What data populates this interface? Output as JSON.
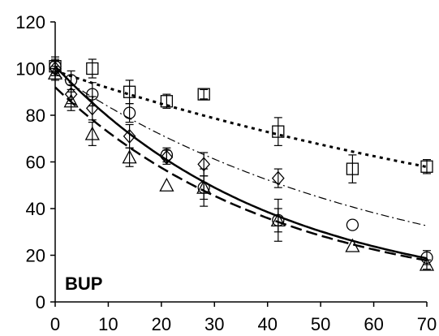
{
  "chart_data": {
    "type": "scatter",
    "panel_label": "BUP",
    "xlim": [
      0,
      70
    ],
    "ylim": [
      0,
      120
    ],
    "x_ticks": [
      0,
      10,
      20,
      30,
      40,
      50,
      60,
      70
    ],
    "y_ticks": [
      0,
      20,
      40,
      60,
      80,
      100,
      120
    ],
    "grid": false,
    "legend": "none",
    "series": [
      {
        "marker": "square",
        "points": [
          {
            "x": 0,
            "y": 101,
            "err": 4
          },
          {
            "x": 7,
            "y": 100,
            "err": 4
          },
          {
            "x": 14,
            "y": 90,
            "err": 5
          },
          {
            "x": 21,
            "y": 86,
            "err": 3
          },
          {
            "x": 28,
            "y": 89,
            "err": 2
          },
          {
            "x": 42,
            "y": 73,
            "err": 6
          },
          {
            "x": 56,
            "y": 57,
            "err": 6
          },
          {
            "x": 70,
            "y": 58,
            "err": 3
          }
        ],
        "fit": {
          "style": "dotted",
          "y0": 99,
          "k": 0.00767
        }
      },
      {
        "marker": "diamond",
        "points": [
          {
            "x": 0,
            "y": 100,
            "err": 3
          },
          {
            "x": 3,
            "y": 89,
            "err": 4
          },
          {
            "x": 7,
            "y": 83,
            "err": 5
          },
          {
            "x": 14,
            "y": 71,
            "err": 5
          },
          {
            "x": 21,
            "y": 62,
            "err": 3
          },
          {
            "x": 28,
            "y": 59,
            "err": 5
          },
          {
            "x": 42,
            "y": 53,
            "err": 4
          }
        ],
        "fit": {
          "style": "dash-dot",
          "y0": 98,
          "k": 0.0157
        }
      },
      {
        "marker": "circle",
        "points": [
          {
            "x": 0,
            "y": 101,
            "err": 3
          },
          {
            "x": 3,
            "y": 95,
            "err": 4
          },
          {
            "x": 7,
            "y": 89,
            "err": 5
          },
          {
            "x": 14,
            "y": 81,
            "err": 4
          },
          {
            "x": 21,
            "y": 63,
            "err": 3
          },
          {
            "x": 28,
            "y": 49,
            "err": 8
          },
          {
            "x": 42,
            "y": 35,
            "err": 9
          },
          {
            "x": 56,
            "y": 33,
            "err": 0
          },
          {
            "x": 70,
            "y": 19,
            "err": 3
          }
        ],
        "fit": {
          "style": "solid",
          "y0": 101,
          "k": 0.0241
        }
      },
      {
        "marker": "triangle",
        "points": [
          {
            "x": 0,
            "y": 98,
            "err": 3
          },
          {
            "x": 3,
            "y": 86,
            "err": 4
          },
          {
            "x": 7,
            "y": 72,
            "err": 5
          },
          {
            "x": 14,
            "y": 62,
            "err": 4
          },
          {
            "x": 21,
            "y": 50,
            "err": 0
          },
          {
            "x": 28,
            "y": 49,
            "err": 5
          },
          {
            "x": 42,
            "y": 35,
            "err": 5
          },
          {
            "x": 56,
            "y": 24,
            "err": 0
          },
          {
            "x": 70,
            "y": 16,
            "err": 2
          }
        ],
        "fit": {
          "style": "dashed",
          "y0": 92,
          "k": 0.0235
        }
      }
    ]
  }
}
